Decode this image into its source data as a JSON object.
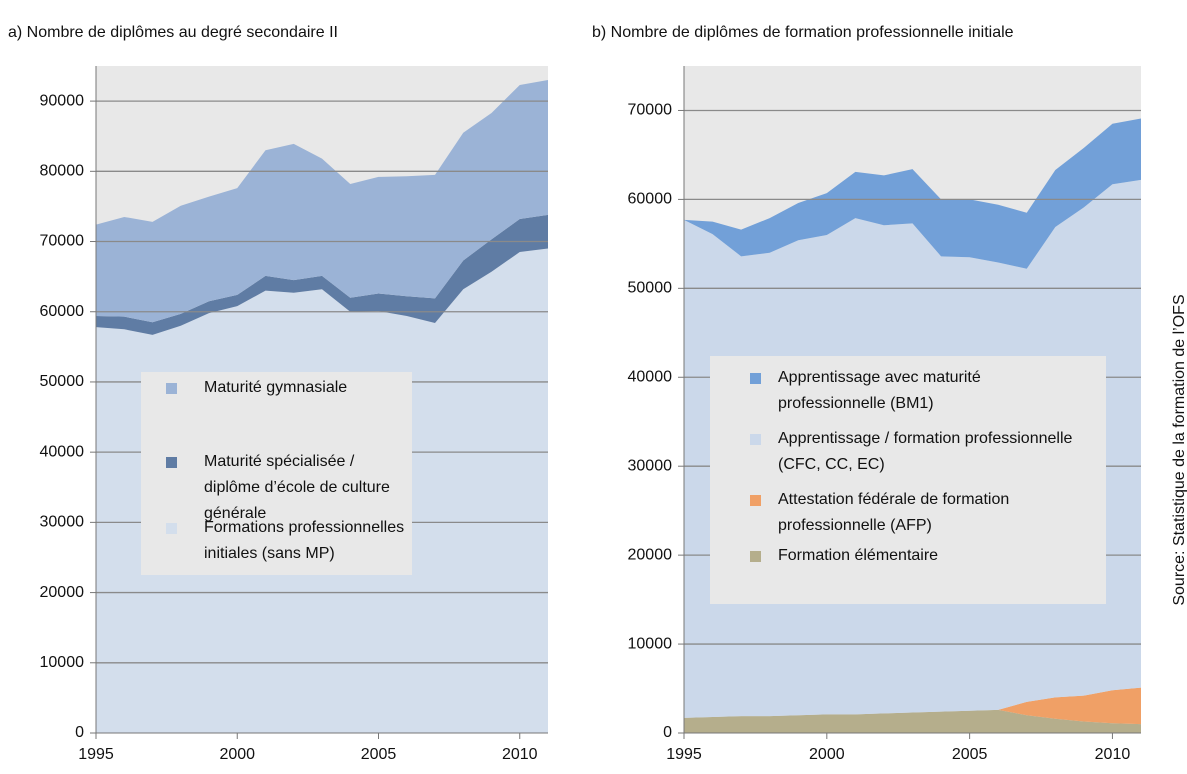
{
  "chart_data": [
    {
      "type": "stacked-area",
      "title": "a)  Nombre de diplômes au degré secondaire II",
      "x": [
        1995,
        1996,
        1997,
        1998,
        1999,
        2000,
        2001,
        2002,
        2003,
        2004,
        2005,
        2006,
        2007,
        2008,
        2009,
        2010,
        2011
      ],
      "series": [
        {
          "name": "Maturité gymnasiale",
          "color": "#9bb3d6",
          "values": [
            13000,
            14200,
            14300,
            15400,
            14900,
            15200,
            17900,
            19400,
            16700,
            16200,
            16600,
            17100,
            17600,
            18200,
            18000,
            19100,
            19200
          ]
        },
        {
          "name": "Maturité spécialisée / diplôme d’école de culture générale",
          "color": "#5f7ca4",
          "values": [
            1600,
            1800,
            1800,
            1700,
            1700,
            1600,
            2100,
            1800,
            1900,
            2000,
            2500,
            2800,
            3500,
            4100,
            4600,
            4700,
            4800
          ]
        },
        {
          "name": "Formations professionnelles initiales (sans MP)",
          "color": "#d3deec",
          "values": [
            57800,
            57500,
            56700,
            58000,
            59800,
            60800,
            63000,
            62700,
            63200,
            60000,
            60100,
            59400,
            58400,
            63200,
            65700,
            68500,
            69000
          ]
        }
      ],
      "xlim": [
        1995,
        2011
      ],
      "xticks": [
        1995,
        2000,
        2005,
        2010
      ],
      "ylim": [
        0,
        95000
      ],
      "yticks": [
        0,
        10000,
        20000,
        30000,
        40000,
        50000,
        60000,
        70000,
        80000,
        90000
      ],
      "grid": true
    },
    {
      "type": "stacked-area",
      "title": "b)  Nombre de diplômes de formation professionnelle initiale",
      "x": [
        1995,
        1996,
        1997,
        1998,
        1999,
        2000,
        2001,
        2002,
        2003,
        2004,
        2005,
        2006,
        2007,
        2008,
        2009,
        2010,
        2011
      ],
      "series": [
        {
          "name": "Apprentissage avec maturité professionnelle (BM1)",
          "color": "#72a0d8",
          "values": [
            0,
            1400,
            3000,
            3900,
            4200,
            4700,
            5200,
            5600,
            6100,
            6400,
            6500,
            6500,
            6300,
            6400,
            6700,
            6800,
            6900
          ]
        },
        {
          "name": "Apprentissage / formation professionnelle (CFC, CC, EC)",
          "color": "#cbd8ea",
          "values": [
            56000,
            54300,
            51700,
            52100,
            53400,
            53900,
            55800,
            54900,
            55000,
            51200,
            51000,
            50300,
            48700,
            52900,
            54900,
            56900,
            57100
          ]
        },
        {
          "name": "Attestation fédérale de formation professionnelle (AFP)",
          "color": "#f0a066",
          "values": [
            0,
            0,
            0,
            0,
            0,
            0,
            0,
            0,
            0,
            0,
            0,
            0,
            1500,
            2400,
            2900,
            3700,
            4100
          ]
        },
        {
          "name": "Formation élémentaire",
          "color": "#b5ae8c",
          "values": [
            1700,
            1800,
            1900,
            1900,
            2000,
            2100,
            2100,
            2200,
            2300,
            2400,
            2500,
            2600,
            2000,
            1600,
            1300,
            1100,
            1000
          ]
        }
      ],
      "xlim": [
        1995,
        2011
      ],
      "xticks": [
        1995,
        2000,
        2005,
        2010
      ],
      "ylim": [
        0,
        75000
      ],
      "yticks": [
        0,
        10000,
        20000,
        30000,
        40000,
        50000,
        60000,
        70000
      ],
      "grid": true
    }
  ],
  "source": "Source: Statistique de la formation de l’OFS"
}
